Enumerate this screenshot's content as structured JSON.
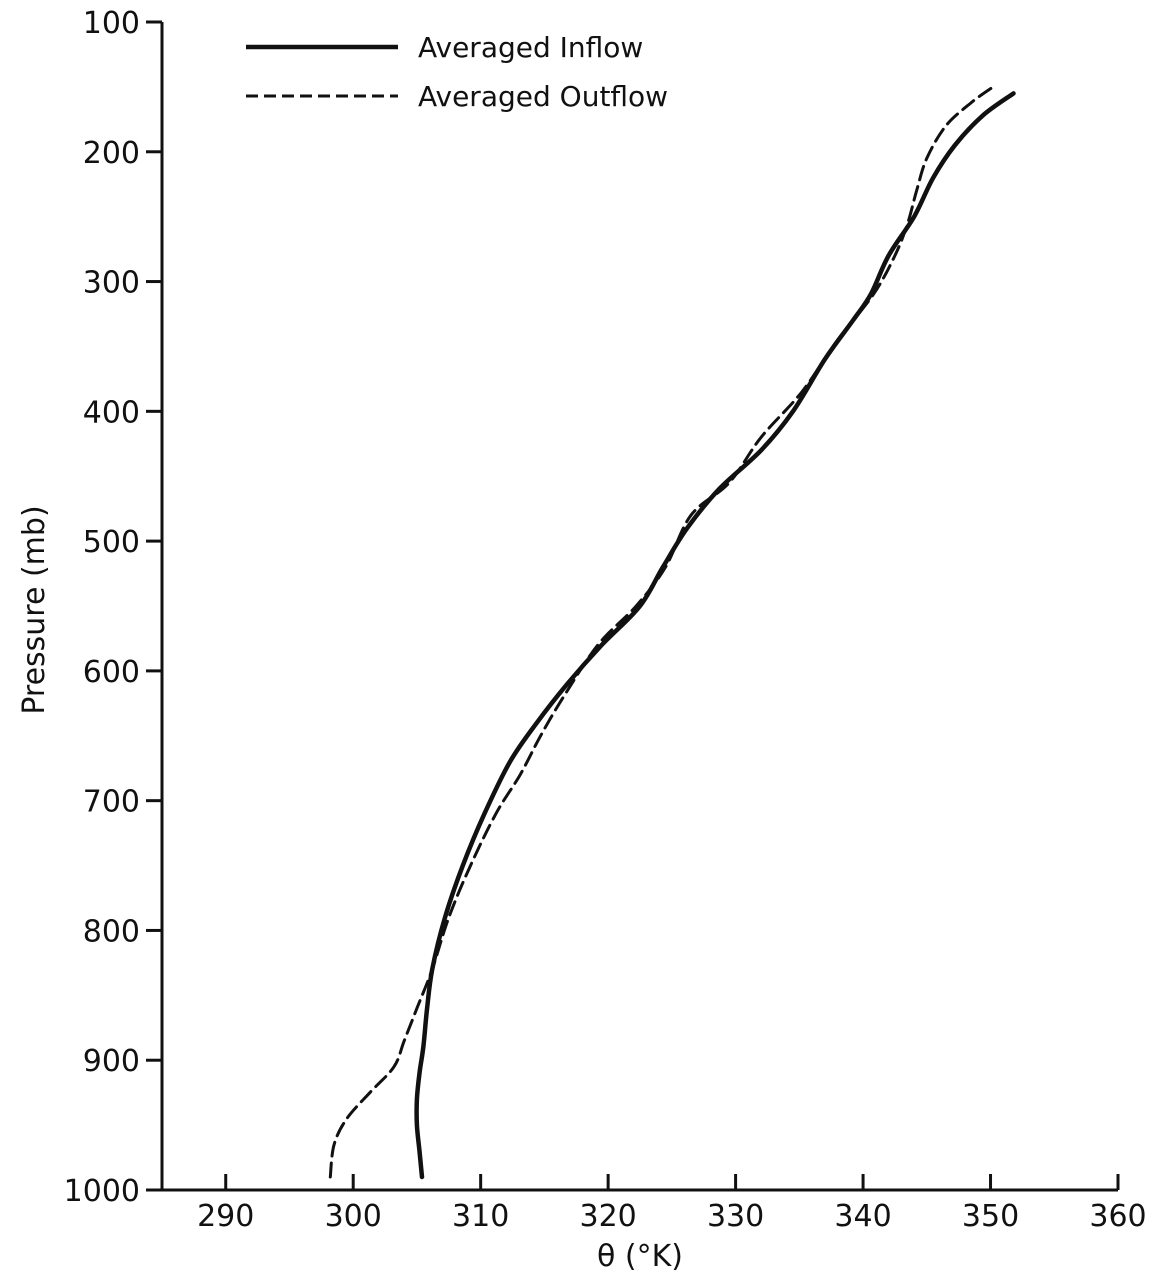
{
  "chart_data": {
    "type": "line",
    "title": "",
    "xlabel": "θ (°K)",
    "ylabel": "Pressure (mb)",
    "xlim": [
      285,
      360
    ],
    "ylim": [
      1000,
      100
    ],
    "y_inverted": true,
    "grid": false,
    "legend_position": "top-left",
    "x_ticks": [
      290,
      300,
      310,
      320,
      330,
      340,
      350,
      360
    ],
    "y_ticks": [
      100,
      200,
      300,
      400,
      500,
      600,
      700,
      800,
      900,
      1000
    ],
    "x_tick_labels": [
      "290",
      "300",
      "310",
      "320",
      "330",
      "340",
      "350",
      "360"
    ],
    "y_tick_labels": [
      "100",
      "200",
      "300",
      "400",
      "500",
      "600",
      "700",
      "800",
      "900",
      "1000"
    ],
    "series": [
      {
        "name": "Averaged Inflow",
        "line_style": "solid",
        "color": "#111111",
        "points": [
          [
            305.4,
            990
          ],
          [
            305.2,
            970
          ],
          [
            305.0,
            950
          ],
          [
            305.0,
            930
          ],
          [
            305.2,
            910
          ],
          [
            305.5,
            890
          ],
          [
            305.8,
            860
          ],
          [
            306.2,
            830
          ],
          [
            307.2,
            790
          ],
          [
            308.6,
            750
          ],
          [
            310.3,
            710
          ],
          [
            312.3,
            670
          ],
          [
            314.4,
            640
          ],
          [
            316.8,
            610
          ],
          [
            319.5,
            580
          ],
          [
            322.5,
            550
          ],
          [
            324.3,
            520
          ],
          [
            326.2,
            490
          ],
          [
            328.7,
            460
          ],
          [
            332.0,
            430
          ],
          [
            334.5,
            400
          ],
          [
            337.0,
            360
          ],
          [
            339.2,
            330
          ],
          [
            340.6,
            310
          ],
          [
            342.0,
            280
          ],
          [
            344.0,
            250
          ],
          [
            345.5,
            220
          ],
          [
            347.2,
            195
          ],
          [
            349.4,
            172
          ],
          [
            351.8,
            155
          ]
        ]
      },
      {
        "name": "Averaged Outflow",
        "line_style": "dashed",
        "color": "#111111",
        "points": [
          [
            298.2,
            990
          ],
          [
            298.5,
            965
          ],
          [
            299.5,
            945
          ],
          [
            301.3,
            925
          ],
          [
            303.2,
            905
          ],
          [
            304.0,
            885
          ],
          [
            305.0,
            860
          ],
          [
            306.2,
            830
          ],
          [
            307.5,
            790
          ],
          [
            309.2,
            750
          ],
          [
            311.2,
            710
          ],
          [
            313.1,
            680
          ],
          [
            314.7,
            650
          ],
          [
            316.5,
            620
          ],
          [
            319.2,
            580
          ],
          [
            322.2,
            550
          ],
          [
            324.5,
            520
          ],
          [
            326.5,
            480
          ],
          [
            329.5,
            455
          ],
          [
            332.0,
            420
          ],
          [
            335.2,
            385
          ],
          [
            338.0,
            345
          ],
          [
            340.8,
            310
          ],
          [
            342.5,
            280
          ],
          [
            343.5,
            255
          ],
          [
            344.2,
            230
          ],
          [
            345.0,
            205
          ],
          [
            346.5,
            180
          ],
          [
            348.5,
            162
          ],
          [
            350.2,
            150
          ]
        ]
      }
    ],
    "legend": [
      {
        "label": "Averaged Inflow",
        "line_style": "solid"
      },
      {
        "label": "Averaged Outflow",
        "line_style": "dashed"
      }
    ]
  }
}
